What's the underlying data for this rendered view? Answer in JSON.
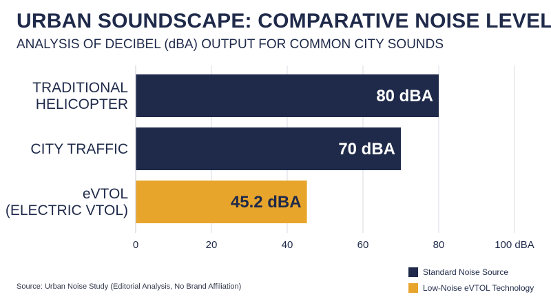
{
  "chart_data": {
    "type": "bar",
    "orientation": "horizontal",
    "title": "URBAN SOUNDSCAPE: COMPARATIVE NOISE LEVELS",
    "subtitle": "ANALYSIS OF DECIBEL (dBA) OUTPUT FOR COMMON CITY SOUNDS",
    "categories": [
      [
        "TRADITIONAL",
        "HELICOPTER"
      ],
      [
        "CITY TRAFFIC"
      ],
      [
        "eVTOL",
        "(ELECTRIC VTOL)"
      ]
    ],
    "values": [
      80,
      70,
      45.2
    ],
    "data_labels": [
      "80 dBA",
      "70 dBA",
      "45.2 dBA"
    ],
    "groups": [
      "standard",
      "standard",
      "low"
    ],
    "xlim": [
      0,
      100
    ],
    "x_ticks": [
      0,
      20,
      40,
      60,
      80,
      100
    ],
    "x_tick_labels": [
      "0",
      "20",
      "40",
      "60",
      "80",
      "100 dBA"
    ],
    "grid": true,
    "legend_position": "bottom-right",
    "legend": [
      {
        "label": "Standard Noise Source",
        "color": "#1f2a4a"
      },
      {
        "label": "Low-Noise eVTOL Technology",
        "color": "#e8a52c"
      }
    ],
    "colors": {
      "standard": "#1f2a4a",
      "low": "#e8a52c"
    },
    "source": "Source: Urban Noise Study (Editorial Analysis, No Brand Affiliation)"
  }
}
